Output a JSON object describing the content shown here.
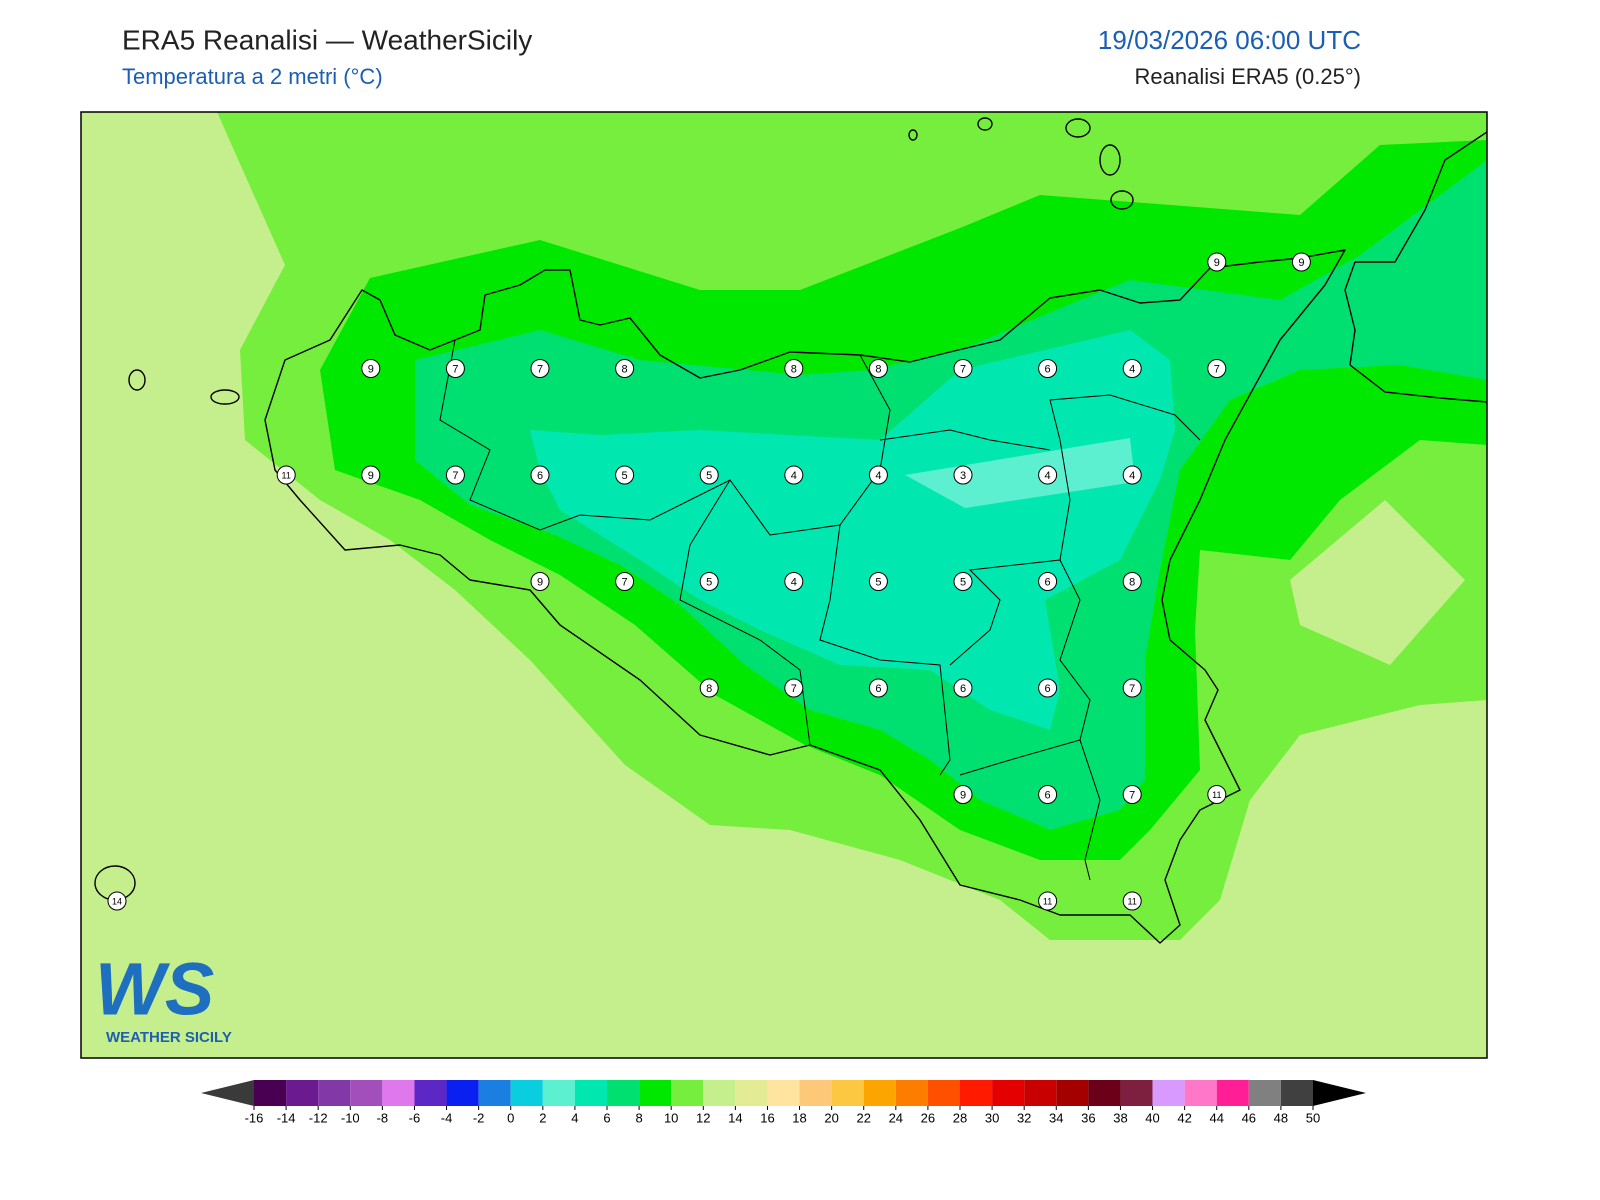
{
  "header": {
    "title": "ERA5 Reanalisi — WeatherSicily",
    "subtitle": "Temperatura a 2 metri (°C)",
    "date": "19/03/2026 06:00 UTC",
    "source": "Reanalisi ERA5 (0.25°)"
  },
  "logo": {
    "mark": "WS",
    "text": "WEATHER SICILY"
  },
  "stations": {
    "rows": [
      [
        null,
        null,
        null,
        null,
        null,
        null,
        null,
        null,
        null,
        null,
        null,
        null,
        null,
        9,
        9
      ],
      [
        null,
        null,
        null,
        9,
        7,
        7,
        8,
        null,
        8,
        8,
        7,
        6,
        4,
        7,
        null
      ],
      [
        null,
        null,
        11,
        9,
        7,
        6,
        5,
        5,
        4,
        4,
        3,
        4,
        4,
        null,
        null
      ],
      [
        null,
        null,
        null,
        null,
        null,
        9,
        7,
        5,
        4,
        5,
        5,
        6,
        8,
        null,
        null
      ],
      [
        null,
        null,
        null,
        null,
        null,
        null,
        null,
        8,
        7,
        6,
        6,
        6,
        7,
        null,
        null
      ],
      [
        null,
        null,
        null,
        null,
        null,
        null,
        null,
        null,
        null,
        null,
        9,
        6,
        7,
        11,
        null
      ],
      [
        14,
        null,
        null,
        null,
        null,
        null,
        null,
        null,
        null,
        null,
        null,
        11,
        11,
        null,
        null
      ]
    ]
  },
  "colorbar": {
    "lim": [
      -16,
      50
    ],
    "ticks": [
      -16,
      -14,
      -12,
      -10,
      -8,
      -6,
      -4,
      -2,
      0,
      2,
      4,
      6,
      8,
      10,
      12,
      14,
      16,
      18,
      20,
      22,
      24,
      26,
      28,
      30,
      32,
      34,
      36,
      38,
      40,
      42,
      44,
      46,
      48,
      50
    ],
    "colors": [
      "#4a0052",
      "#6b1a8f",
      "#8338a8",
      "#a24fbb",
      "#de78ec",
      "#5c27c4",
      "#0a20f0",
      "#1a7fe0",
      "#0acde0",
      "#5cf0d0",
      "#00e8b0",
      "#00e070",
      "#00e800",
      "#75ee3d",
      "#c5ef8c",
      "#e3ec95",
      "#ffe4a0",
      "#fdc878",
      "#fcc842",
      "#fca500",
      "#fc7d00",
      "#ff5000",
      "#ff1a00",
      "#e50000",
      "#c80000",
      "#a50000",
      "#6b0018",
      "#7d2040",
      "#d89aff",
      "#ff78c8",
      "#ff1e96",
      "#808080",
      "#404040"
    ],
    "under_color": "#3a3a3a",
    "over_color": "#000000"
  }
}
